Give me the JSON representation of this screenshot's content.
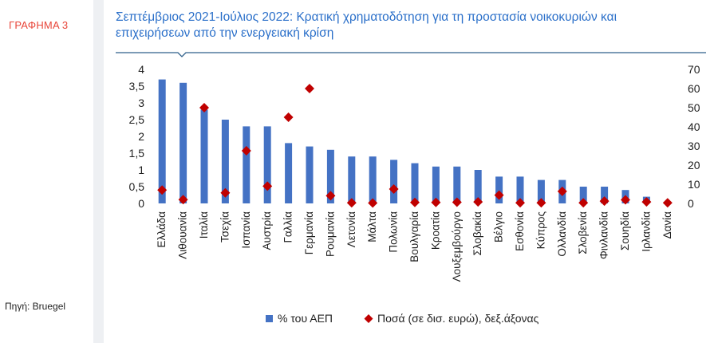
{
  "figure_label": "ΓΡΑΦΗΜΑ 3",
  "source": "Πηγή: Bruegel",
  "colors": {
    "bar": "#4472c4",
    "marker": "#c00000",
    "title": "#2a6fc9",
    "label": "#e8463a",
    "rule": "#2e5f8a"
  },
  "chart_data": {
    "type": "bar",
    "title": "Σεπτέμβριος 2021-Ιούλιος 2022: Κρατική χρηματοδότηση για τη προστασία νοικοκυριών και επιχειρήσεων από την ενεργειακή κρίση",
    "title_lines": [
      "Σεπτέμβριος 2021-Ιούλιος 2022: Κρατική χρηματοδότηση για τη προστασία νοικοκυριών και",
      "επιχειρήσεων από την ενεργειακή κρίση"
    ],
    "categories": [
      "Ελλάδα",
      "Λιθουανία",
      "Ιταλία",
      "Τσεχία",
      "Ισπανία",
      "Αυστρία",
      "Γαλλία",
      "Γερμανία",
      "Ρουμανία",
      "Λετονία",
      "Μάλτα",
      "Πολωνία",
      "Βουλγαρία",
      "Κροατία",
      "Λουξεμβούργο",
      "Σλοβακία",
      "Βέλγιο",
      "Εσθονία",
      "Κύπρος",
      "Ολλανδία",
      "Σλοβενία",
      "Φινλανδία",
      "Σουηδία",
      "Ιρλανδία",
      "Δανία"
    ],
    "series": [
      {
        "name": "% του ΑΕΠ",
        "type": "bar",
        "axis": "left",
        "values": [
          3.7,
          3.6,
          2.8,
          2.5,
          2.3,
          2.3,
          1.8,
          1.7,
          1.6,
          1.4,
          1.4,
          1.3,
          1.2,
          1.1,
          1.1,
          1.0,
          0.8,
          0.8,
          0.7,
          0.7,
          0.5,
          0.5,
          0.4,
          0.2,
          0.0
        ]
      },
      {
        "name": "Ποσά (σε δισ. ευρώ), δεξ.άξονας",
        "type": "scatter",
        "axis": "right",
        "values": [
          7,
          2,
          50,
          5.5,
          27.5,
          9,
          45,
          60,
          4,
          0.3,
          0.2,
          7.5,
          0.5,
          0.5,
          0.6,
          0.8,
          4.3,
          0.3,
          0.3,
          6.3,
          0.3,
          1.2,
          1.9,
          0.8,
          0.3
        ]
      }
    ],
    "yleft": {
      "range": [
        0,
        4
      ],
      "ticks": [
        0,
        0.5,
        1,
        1.5,
        2,
        2.5,
        3,
        3.5,
        4
      ],
      "tick_labels": [
        "0",
        "0,5",
        "1",
        "1,5",
        "2",
        "2,5",
        "3",
        "3,5",
        "4"
      ]
    },
    "yright": {
      "range": [
        0,
        70
      ],
      "ticks": [
        0,
        10,
        20,
        30,
        40,
        50,
        60,
        70
      ],
      "tick_labels": [
        "0",
        "10",
        "20",
        "30",
        "40",
        "50",
        "60",
        "70"
      ]
    },
    "grid": false,
    "legend_position": "bottom"
  }
}
